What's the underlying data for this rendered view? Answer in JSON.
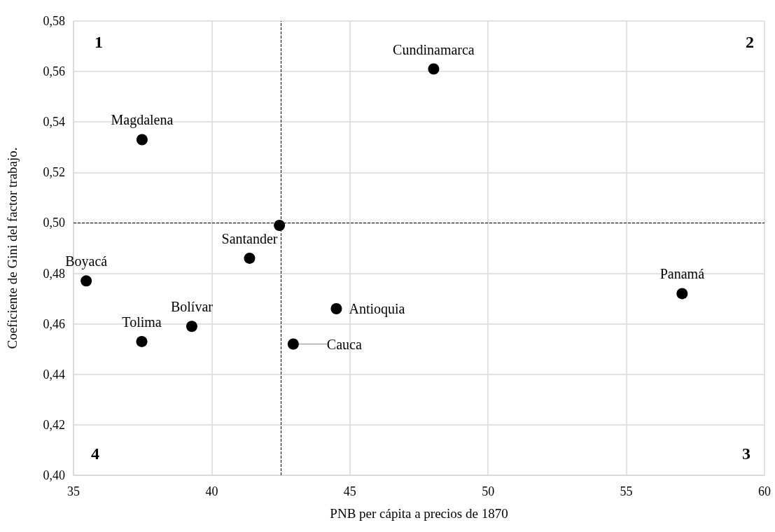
{
  "chart_data": {
    "type": "scatter",
    "xlabel": "PNB per cápita a precios de 1870",
    "ylabel": "Coeficiente de Gini del factor trabajo.",
    "x": [
      48.03,
      37.48,
      42.45,
      41.37,
      35.46,
      44.51,
      39.28,
      37.47,
      42.95,
      57.02
    ],
    "values": [
      0.561,
      0.533,
      0.499,
      0.486,
      0.477,
      0.466,
      0.459,
      0.453,
      0.452,
      0.472
    ],
    "value_labels": [
      "Cundinamarca",
      "Magdalena",
      null,
      "Santander",
      "Boyacá",
      "Antioquia",
      "Bolívar",
      "Tolima",
      "Cauca",
      "Panamá"
    ],
    "color": "#000000",
    "marker": "circle",
    "grid": true,
    "xlim": [
      35,
      60
    ],
    "xticks": [
      35,
      40,
      45,
      50,
      55,
      60
    ],
    "ylim": [
      0.4,
      0.58
    ],
    "yticks": [
      {
        "value": 0.4,
        "label": "0,40"
      },
      {
        "value": 0.42,
        "label": "0,42"
      },
      {
        "value": 0.44,
        "label": "0,44"
      },
      {
        "value": 0.46,
        "label": "0,46"
      },
      {
        "value": 0.48,
        "label": "0,48"
      },
      {
        "value": 0.5,
        "label": "0,50"
      },
      {
        "value": 0.52,
        "label": "0,52"
      },
      {
        "value": 0.54,
        "label": "0,54"
      },
      {
        "value": 0.56,
        "label": "0,56"
      },
      {
        "value": 0.58,
        "label": "0,58"
      }
    ],
    "ref_lines": [
      {
        "axis": "x",
        "value": 42.5,
        "label": null,
        "line_style": "dashed",
        "color": "#000000"
      },
      {
        "axis": "y",
        "value": 0.5,
        "label": null,
        "line_style": "dashed",
        "color": "#000000"
      }
    ],
    "annotations": [
      "1",
      "2",
      "3",
      "4"
    ]
  }
}
